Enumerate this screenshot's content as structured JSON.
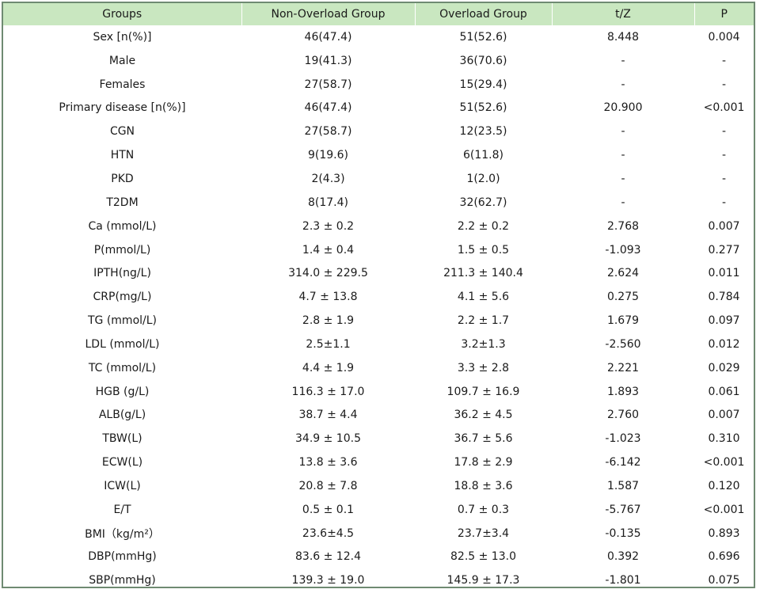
{
  "table": {
    "headers": [
      "Groups",
      "Non-Overload Group",
      "Overload Group",
      "t/Z",
      "P"
    ],
    "rows": [
      [
        "Sex [n(%)]",
        "46(47.4)",
        "51(52.6)",
        "8.448",
        "0.004"
      ],
      [
        "Male",
        "19(41.3)",
        "36(70.6)",
        "-",
        "-"
      ],
      [
        "Females",
        "27(58.7)",
        "15(29.4)",
        "-",
        "-"
      ],
      [
        "Primary disease [n(%)]",
        "46(47.4)",
        "51(52.6)",
        "20.900",
        "<0.001"
      ],
      [
        "CGN",
        "27(58.7)",
        "12(23.5)",
        "-",
        "-"
      ],
      [
        "HTN",
        "9(19.6)",
        "6(11.8)",
        "-",
        "-"
      ],
      [
        "PKD",
        "2(4.3)",
        "1(2.0)",
        "-",
        "-"
      ],
      [
        "T2DM",
        "8(17.4)",
        "32(62.7)",
        "-",
        "-"
      ],
      [
        "Ca (mmol/L)",
        "2.3 ± 0.2",
        "2.2 ± 0.2",
        "2.768",
        "0.007"
      ],
      [
        "P(mmol/L)",
        "1.4 ± 0.4",
        "1.5 ± 0.5",
        "-1.093",
        "0.277"
      ],
      [
        "IPTH(ng/L)",
        "314.0 ± 229.5",
        "211.3 ± 140.4",
        "2.624",
        "0.011"
      ],
      [
        "CRP(mg/L)",
        "4.7 ± 13.8",
        "4.1 ± 5.6",
        "0.275",
        "0.784"
      ],
      [
        "TG (mmol/L)",
        "2.8 ± 1.9",
        "2.2 ± 1.7",
        "1.679",
        "0.097"
      ],
      [
        "LDL (mmol/L)",
        "2.5±1.1",
        "3.2±1.3",
        "-2.560",
        "0.012"
      ],
      [
        "TC (mmol/L)",
        "4.4 ± 1.9",
        "3.3 ± 2.8",
        "2.221",
        "0.029"
      ],
      [
        "HGB (g/L)",
        "116.3 ± 17.0",
        "109.7 ± 16.9",
        "1.893",
        "0.061"
      ],
      [
        "ALB(g/L)",
        "38.7 ± 4.4",
        "36.2 ± 4.5",
        "2.760",
        "0.007"
      ],
      [
        "TBW(L)",
        "34.9 ± 10.5",
        "36.7 ± 5.6",
        "-1.023",
        "0.310"
      ],
      [
        "ECW(L)",
        "13.8 ± 3.6",
        "17.8 ± 2.9",
        "-6.142",
        "<0.001"
      ],
      [
        "ICW(L)",
        "20.8 ± 7.8",
        "18.8 ± 3.6",
        "1.587",
        "0.120"
      ],
      [
        "E/T",
        "0.5 ± 0.1",
        "0.7 ± 0.3",
        "-5.767",
        "<0.001"
      ],
      [
        "BMI（kg/m²）",
        "23.6±4.5",
        "23.7±3.4",
        "-0.135",
        "0.893"
      ],
      [
        "DBP(mmHg)",
        "83.6 ± 12.4",
        "82.5 ± 13.0",
        "0.392",
        "0.696"
      ],
      [
        "SBP(mmHg)",
        "139.3 ± 19.0",
        "145.9 ± 17.3",
        "-1.801",
        "0.075"
      ]
    ]
  }
}
